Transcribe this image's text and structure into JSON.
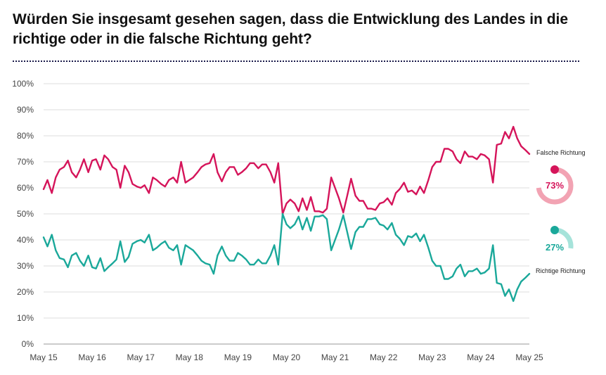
{
  "title": "Würden Sie insgesamt gesehen sagen, dass die Entwicklung des Landes in die richtige oder in die falsche Richtung geht?",
  "colors": {
    "falsche": "#d5145a",
    "richtige": "#1aa89a",
    "falsche_light": "#f2a3b3",
    "richtige_light": "#a6e3da",
    "grid": "#dcdcdc"
  },
  "chart_data": {
    "type": "line",
    "ylim": [
      0,
      100
    ],
    "yticks": [
      "0%",
      "10%",
      "20%",
      "30%",
      "40%",
      "50%",
      "60%",
      "70%",
      "80%",
      "90%",
      "100%"
    ],
    "xlim": [
      2015.25,
      2025.25
    ],
    "xticks": [
      {
        "x": 2015.25,
        "label": "May 15"
      },
      {
        "x": 2016.25,
        "label": "May 16"
      },
      {
        "x": 2017.25,
        "label": "May 17"
      },
      {
        "x": 2018.25,
        "label": "May 18"
      },
      {
        "x": 2019.25,
        "label": "May 19"
      },
      {
        "x": 2020.25,
        "label": "May 20"
      },
      {
        "x": 2021.25,
        "label": "May 21"
      },
      {
        "x": 2022.25,
        "label": "May 22"
      },
      {
        "x": 2023.25,
        "label": "May 23"
      },
      {
        "x": 2024.25,
        "label": "May 24"
      },
      {
        "x": 2025.25,
        "label": "May 25"
      }
    ],
    "series": [
      {
        "name": "Falsche Richtung",
        "color": "#d5145a",
        "final_pct": "73%",
        "final_value": 73,
        "points": [
          [
            2015.25,
            59.5
          ],
          [
            2015.33,
            63
          ],
          [
            2015.42,
            58
          ],
          [
            2015.5,
            64
          ],
          [
            2015.58,
            67
          ],
          [
            2015.67,
            68
          ],
          [
            2015.75,
            70.5
          ],
          [
            2015.83,
            66
          ],
          [
            2015.92,
            64
          ],
          [
            2016.0,
            67
          ],
          [
            2016.08,
            71
          ],
          [
            2016.17,
            66
          ],
          [
            2016.25,
            70.5
          ],
          [
            2016.33,
            71
          ],
          [
            2016.42,
            67
          ],
          [
            2016.5,
            72.5
          ],
          [
            2016.58,
            71
          ],
          [
            2016.67,
            68
          ],
          [
            2016.75,
            67
          ],
          [
            2016.83,
            60
          ],
          [
            2016.92,
            68.5
          ],
          [
            2017.0,
            66
          ],
          [
            2017.08,
            61.5
          ],
          [
            2017.17,
            60.5
          ],
          [
            2017.25,
            60
          ],
          [
            2017.33,
            61
          ],
          [
            2017.42,
            58
          ],
          [
            2017.5,
            64
          ],
          [
            2017.58,
            63
          ],
          [
            2017.67,
            61.5
          ],
          [
            2017.75,
            60.5
          ],
          [
            2017.83,
            63
          ],
          [
            2017.92,
            64
          ],
          [
            2018.0,
            62
          ],
          [
            2018.08,
            70
          ],
          [
            2018.17,
            62
          ],
          [
            2018.25,
            63
          ],
          [
            2018.33,
            64
          ],
          [
            2018.42,
            66
          ],
          [
            2018.5,
            68
          ],
          [
            2018.58,
            69
          ],
          [
            2018.67,
            69.5
          ],
          [
            2018.75,
            73
          ],
          [
            2018.83,
            66
          ],
          [
            2018.92,
            62.5
          ],
          [
            2019.0,
            66
          ],
          [
            2019.08,
            68
          ],
          [
            2019.17,
            68
          ],
          [
            2019.25,
            65
          ],
          [
            2019.33,
            66
          ],
          [
            2019.42,
            67.5
          ],
          [
            2019.5,
            69.5
          ],
          [
            2019.58,
            69.5
          ],
          [
            2019.67,
            67.5
          ],
          [
            2019.75,
            69
          ],
          [
            2019.83,
            69
          ],
          [
            2019.92,
            66
          ],
          [
            2020.0,
            62
          ],
          [
            2020.08,
            69.5
          ],
          [
            2020.17,
            50
          ],
          [
            2020.25,
            54
          ],
          [
            2020.33,
            55.5
          ],
          [
            2020.42,
            54
          ],
          [
            2020.5,
            51
          ],
          [
            2020.58,
            56
          ],
          [
            2020.67,
            51.5
          ],
          [
            2020.75,
            56.5
          ],
          [
            2020.83,
            51
          ],
          [
            2020.92,
            51
          ],
          [
            2021.0,
            50.5
          ],
          [
            2021.08,
            52
          ],
          [
            2021.17,
            64
          ],
          [
            2021.25,
            60
          ],
          [
            2021.33,
            56
          ],
          [
            2021.42,
            50.5
          ],
          [
            2021.5,
            57
          ],
          [
            2021.58,
            63.5
          ],
          [
            2021.67,
            57
          ],
          [
            2021.75,
            55
          ],
          [
            2021.83,
            55
          ],
          [
            2021.92,
            52
          ],
          [
            2022.0,
            52
          ],
          [
            2022.08,
            51.5
          ],
          [
            2022.17,
            54
          ],
          [
            2022.25,
            54.5
          ],
          [
            2022.33,
            56
          ],
          [
            2022.42,
            53.5
          ],
          [
            2022.5,
            58
          ],
          [
            2022.58,
            59.5
          ],
          [
            2022.67,
            62
          ],
          [
            2022.75,
            58.5
          ],
          [
            2022.83,
            59
          ],
          [
            2022.92,
            57.5
          ],
          [
            2023.0,
            60.5
          ],
          [
            2023.08,
            58
          ],
          [
            2023.17,
            63
          ],
          [
            2023.25,
            68
          ],
          [
            2023.33,
            70
          ],
          [
            2023.42,
            70
          ],
          [
            2023.5,
            75
          ],
          [
            2023.58,
            75
          ],
          [
            2023.67,
            74
          ],
          [
            2023.75,
            71
          ],
          [
            2023.83,
            69.5
          ],
          [
            2023.92,
            74
          ],
          [
            2024.0,
            72
          ],
          [
            2024.08,
            72
          ],
          [
            2024.17,
            71
          ],
          [
            2024.25,
            73
          ],
          [
            2024.33,
            72.5
          ],
          [
            2024.42,
            71
          ],
          [
            2024.5,
            62
          ],
          [
            2024.58,
            76.5
          ],
          [
            2024.67,
            77
          ],
          [
            2024.75,
            81.5
          ],
          [
            2024.83,
            79
          ],
          [
            2024.92,
            83.5
          ],
          [
            2025.0,
            79
          ],
          [
            2025.08,
            76
          ],
          [
            2025.17,
            74.5
          ],
          [
            2025.25,
            73
          ]
        ]
      },
      {
        "name": "Richtige Richtung",
        "color": "#1aa89a",
        "final_pct": "27%",
        "final_value": 27,
        "points": [
          [
            2015.25,
            41
          ],
          [
            2015.33,
            37.5
          ],
          [
            2015.42,
            42
          ],
          [
            2015.5,
            36
          ],
          [
            2015.58,
            33
          ],
          [
            2015.67,
            32.5
          ],
          [
            2015.75,
            29.5
          ],
          [
            2015.83,
            34
          ],
          [
            2015.92,
            35
          ],
          [
            2016.0,
            32
          ],
          [
            2016.08,
            30
          ],
          [
            2016.17,
            34
          ],
          [
            2016.25,
            29.5
          ],
          [
            2016.33,
            29
          ],
          [
            2016.42,
            33
          ],
          [
            2016.5,
            28
          ],
          [
            2016.58,
            29.5
          ],
          [
            2016.67,
            31
          ],
          [
            2016.75,
            32.5
          ],
          [
            2016.83,
            39.5
          ],
          [
            2016.92,
            31.5
          ],
          [
            2017.0,
            33.5
          ],
          [
            2017.08,
            38.5
          ],
          [
            2017.17,
            39.5
          ],
          [
            2017.25,
            40
          ],
          [
            2017.33,
            39
          ],
          [
            2017.42,
            42
          ],
          [
            2017.5,
            36
          ],
          [
            2017.58,
            37
          ],
          [
            2017.67,
            38.5
          ],
          [
            2017.75,
            39.5
          ],
          [
            2017.83,
            37
          ],
          [
            2017.92,
            36
          ],
          [
            2018.0,
            38
          ],
          [
            2018.08,
            30.5
          ],
          [
            2018.17,
            38
          ],
          [
            2018.25,
            37
          ],
          [
            2018.33,
            36
          ],
          [
            2018.42,
            34
          ],
          [
            2018.5,
            32
          ],
          [
            2018.58,
            31
          ],
          [
            2018.67,
            30.5
          ],
          [
            2018.75,
            27
          ],
          [
            2018.83,
            34
          ],
          [
            2018.92,
            37.5
          ],
          [
            2019.0,
            34
          ],
          [
            2019.08,
            32
          ],
          [
            2019.17,
            32
          ],
          [
            2019.25,
            35
          ],
          [
            2019.33,
            34
          ],
          [
            2019.42,
            32.5
          ],
          [
            2019.5,
            30.5
          ],
          [
            2019.58,
            30.5
          ],
          [
            2019.67,
            32.5
          ],
          [
            2019.75,
            31
          ],
          [
            2019.83,
            31
          ],
          [
            2019.92,
            34
          ],
          [
            2020.0,
            38
          ],
          [
            2020.08,
            30.5
          ],
          [
            2020.17,
            50
          ],
          [
            2020.25,
            46
          ],
          [
            2020.33,
            44.5
          ],
          [
            2020.42,
            46
          ],
          [
            2020.5,
            49
          ],
          [
            2020.58,
            44
          ],
          [
            2020.67,
            48.5
          ],
          [
            2020.75,
            43.5
          ],
          [
            2020.83,
            49
          ],
          [
            2020.92,
            49
          ],
          [
            2021.0,
            49.5
          ],
          [
            2021.08,
            48
          ],
          [
            2021.17,
            36
          ],
          [
            2021.25,
            40
          ],
          [
            2021.33,
            44
          ],
          [
            2021.42,
            49.5
          ],
          [
            2021.5,
            43
          ],
          [
            2021.58,
            36.5
          ],
          [
            2021.67,
            43
          ],
          [
            2021.75,
            45
          ],
          [
            2021.83,
            45
          ],
          [
            2021.92,
            48
          ],
          [
            2022.0,
            48
          ],
          [
            2022.08,
            48.5
          ],
          [
            2022.17,
            46
          ],
          [
            2022.25,
            45.5
          ],
          [
            2022.33,
            44
          ],
          [
            2022.42,
            46.5
          ],
          [
            2022.5,
            42
          ],
          [
            2022.58,
            40.5
          ],
          [
            2022.67,
            38
          ],
          [
            2022.75,
            41.5
          ],
          [
            2022.83,
            41
          ],
          [
            2022.92,
            42.5
          ],
          [
            2023.0,
            39.5
          ],
          [
            2023.08,
            42
          ],
          [
            2023.17,
            37
          ],
          [
            2023.25,
            32
          ],
          [
            2023.33,
            30
          ],
          [
            2023.42,
            30
          ],
          [
            2023.5,
            25
          ],
          [
            2023.58,
            25
          ],
          [
            2023.67,
            26
          ],
          [
            2023.75,
            29
          ],
          [
            2023.83,
            30.5
          ],
          [
            2023.92,
            26
          ],
          [
            2024.0,
            28
          ],
          [
            2024.08,
            28
          ],
          [
            2024.17,
            29
          ],
          [
            2024.25,
            27
          ],
          [
            2024.33,
            27.5
          ],
          [
            2024.42,
            29
          ],
          [
            2024.5,
            38
          ],
          [
            2024.58,
            23.5
          ],
          [
            2024.67,
            23
          ],
          [
            2024.75,
            18.5
          ],
          [
            2024.83,
            21
          ],
          [
            2024.92,
            16.5
          ],
          [
            2025.0,
            21
          ],
          [
            2025.08,
            24
          ],
          [
            2025.17,
            25.5
          ],
          [
            2025.25,
            27
          ]
        ]
      }
    ]
  }
}
